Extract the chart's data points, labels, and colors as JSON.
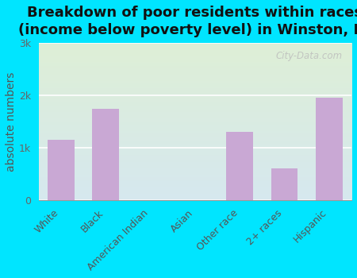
{
  "title": "Breakdown of poor residents within races\n(income below poverty level) in Winston, FL",
  "categories": [
    "White",
    "Black",
    "American Indian",
    "Asian",
    "Other race",
    "2+ races",
    "Hispanic"
  ],
  "values": [
    1150,
    1750,
    0,
    0,
    1300,
    600,
    1950
  ],
  "bar_color": "#c9a8d4",
  "ylabel": "absolute numbers",
  "ylim": [
    0,
    3000
  ],
  "yticks": [
    0,
    1000,
    2000,
    3000
  ],
  "ytick_labels": [
    "0",
    "1k",
    "2k",
    "3k"
  ],
  "bg_top": "#deefd6",
  "bg_bottom": "#d6e8ef",
  "outer_bg": "#00e5ff",
  "watermark": "City-Data.com",
  "title_fontsize": 13,
  "ylabel_fontsize": 10,
  "tick_fontsize": 9
}
